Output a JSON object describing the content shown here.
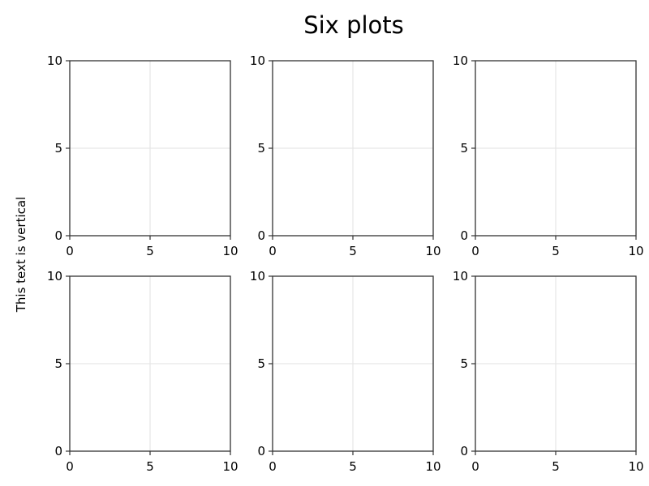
{
  "figure": {
    "title": "Six plots",
    "ylabel": "This text is vertical"
  },
  "chart_data": [
    {
      "type": "line",
      "series": [],
      "xlim": [
        0,
        10
      ],
      "ylim": [
        0,
        10
      ],
      "xticks": [
        0,
        5,
        10
      ],
      "yticks": [
        0,
        5,
        10
      ],
      "grid": true
    },
    {
      "type": "line",
      "series": [],
      "xlim": [
        0,
        10
      ],
      "ylim": [
        0,
        10
      ],
      "xticks": [
        0,
        5,
        10
      ],
      "yticks": [
        0,
        5,
        10
      ],
      "grid": true
    },
    {
      "type": "line",
      "series": [],
      "xlim": [
        0,
        10
      ],
      "ylim": [
        0,
        10
      ],
      "xticks": [
        0,
        5,
        10
      ],
      "yticks": [
        0,
        5,
        10
      ],
      "grid": true
    },
    {
      "type": "line",
      "series": [],
      "xlim": [
        0,
        10
      ],
      "ylim": [
        0,
        10
      ],
      "xticks": [
        0,
        5,
        10
      ],
      "yticks": [
        0,
        5,
        10
      ],
      "grid": true
    },
    {
      "type": "line",
      "series": [],
      "xlim": [
        0,
        10
      ],
      "ylim": [
        0,
        10
      ],
      "xticks": [
        0,
        5,
        10
      ],
      "yticks": [
        0,
        5,
        10
      ],
      "grid": true
    },
    {
      "type": "line",
      "series": [],
      "xlim": [
        0,
        10
      ],
      "ylim": [
        0,
        10
      ],
      "xticks": [
        0,
        5,
        10
      ],
      "yticks": [
        0,
        5,
        10
      ],
      "grid": true
    }
  ],
  "colors": {
    "axis": "#333333",
    "grid": "#e6e6e6",
    "text": "#000000"
  }
}
